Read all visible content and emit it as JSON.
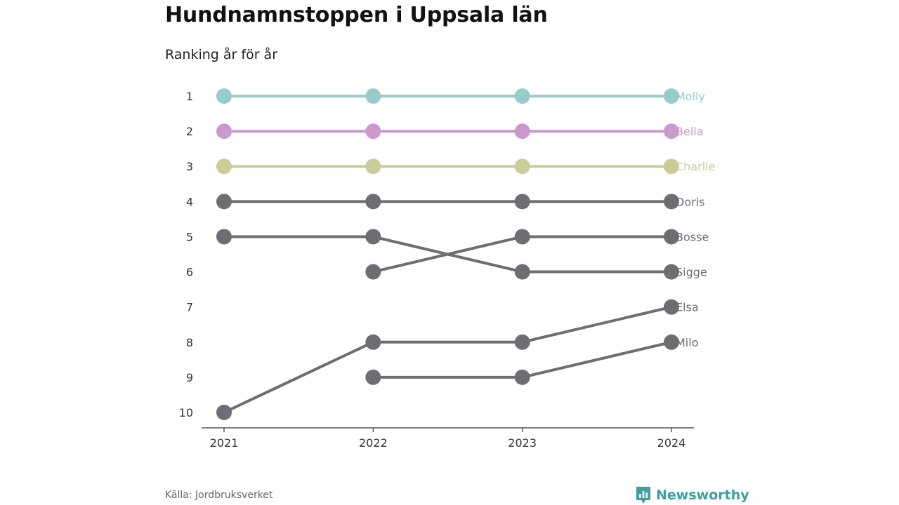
{
  "title": "Hundnamnstoppen i Uppsala län",
  "subtitle": "Ranking år för år",
  "source": "Källa: Jordbruksverket",
  "brand": {
    "name": "Newsworthy",
    "icon": "newsworthy-logo-icon",
    "color": "#3aa0a0"
  },
  "chart_data": {
    "type": "line",
    "x": [
      "2021",
      "2022",
      "2023",
      "2024"
    ],
    "ylim": [
      1,
      10
    ],
    "y_ticks": [
      "1",
      "2",
      "3",
      "4",
      "5",
      "6",
      "7",
      "8",
      "9",
      "10"
    ],
    "y_inverted": true,
    "grid": false,
    "legend": "labels at line ends",
    "series": [
      {
        "name": "Molly",
        "color": "#96cdcb",
        "values": [
          1,
          1,
          1,
          1
        ]
      },
      {
        "name": "Bella",
        "color": "#cc99cf",
        "values": [
          2,
          2,
          2,
          2
        ]
      },
      {
        "name": "Charlie",
        "color": "#cccc99",
        "values": [
          3,
          3,
          3,
          3
        ]
      },
      {
        "name": "Doris",
        "color": "#6d6d72",
        "values": [
          4,
          4,
          4,
          4
        ]
      },
      {
        "name": "Bosse",
        "color": "#6d6d72",
        "values": [
          null,
          6,
          5,
          5
        ]
      },
      {
        "name": "Sigge",
        "color": "#6d6d72",
        "values": [
          5,
          5,
          6,
          6
        ]
      },
      {
        "name": "Elsa",
        "color": "#6d6d72",
        "values": [
          10,
          8,
          8,
          7
        ]
      },
      {
        "name": "Milo",
        "color": "#6d6d72",
        "values": [
          null,
          9,
          9,
          8
        ]
      }
    ]
  }
}
